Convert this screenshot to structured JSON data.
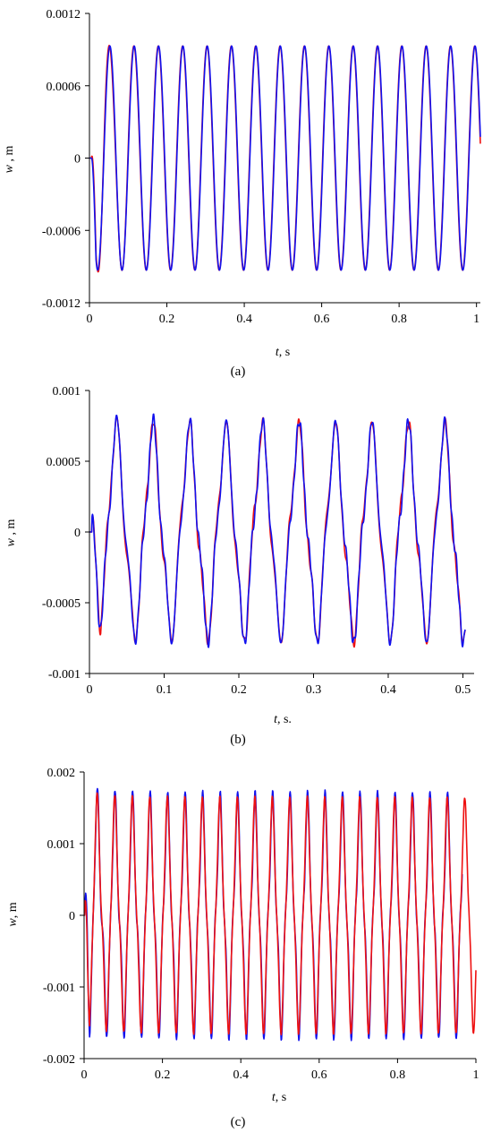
{
  "figure_captions": [
    "(a)",
    "(b)",
    "(c)"
  ],
  "colors": {
    "series_red": "#ee1111",
    "series_blue": "#1111ee",
    "axis": "#000000"
  },
  "chart_data": [
    {
      "type": "line",
      "title": "",
      "caption": "(a)",
      "xlabel_var": "t",
      "xlabel_unit": ", s",
      "ylabel_var": "w",
      "ylabel_unit": " , m",
      "xlim": [
        0,
        1.01
      ],
      "ylim": [
        -0.0012,
        0.0012
      ],
      "x_ticks": [
        0,
        0.2,
        0.4,
        0.6,
        0.8,
        1
      ],
      "x_tick_labels": [
        "0",
        "0.2",
        "0.4",
        "0.6",
        "0.8",
        "1"
      ],
      "y_ticks": [
        -0.0012,
        -0.0006,
        0,
        0.0006,
        0.0012
      ],
      "y_tick_labels": [
        "-0.0012",
        "-0.0006",
        "0",
        "0.0006",
        "0.0012"
      ],
      "grid": false,
      "series": [
        {
          "color": "#ee1111",
          "sampling": {
            "x_start": 0,
            "x_end": 1.01,
            "points": 1011
          },
          "model": {
            "kind": "sine",
            "start": 0.005,
            "amplitude": 0.00093,
            "frequency": 15.9,
            "phase": 3.14159,
            "transient_amplitude": 0.00012,
            "transient_decay": 0.05
          }
        },
        {
          "color": "#1111ee",
          "sampling": {
            "x_start": 0,
            "x_end": 1.01,
            "points": 1011
          },
          "model": {
            "kind": "sine",
            "start": 0.005,
            "amplitude": 0.00093,
            "frequency": 15.9,
            "phase": 3.08,
            "transient_amplitude": 0,
            "transient_decay": 0.05
          }
        }
      ]
    },
    {
      "type": "line",
      "title": "",
      "caption": "(b)",
      "xlabel_var": "t",
      "xlabel_unit": ", s.",
      "ylabel_var": "w",
      "ylabel_unit": " , m",
      "xlim": [
        0,
        0.515
      ],
      "ylim": [
        -0.001,
        0.001
      ],
      "x_ticks": [
        0,
        0.1,
        0.2,
        0.3,
        0.4,
        0.5
      ],
      "x_tick_labels": [
        "0",
        "0.1",
        "0.2",
        "0.3",
        "0.4",
        "0.5"
      ],
      "y_ticks": [
        -0.001,
        -0.0005,
        0,
        0.0005,
        0.001
      ],
      "y_tick_labels": [
        "-0.001",
        "-0.0005",
        "0",
        "0.0005",
        "0.001"
      ],
      "grid": false,
      "series": [
        {
          "color": "#ee1111",
          "sampling": {
            "x_start": 0,
            "x_end": 0.503,
            "points": 1007
          },
          "model": {
            "kind": "beating",
            "start": 0.003,
            "amplitude": 0.00068,
            "frequency": 20.5,
            "phase": 3.6,
            "harmonic_amplitude": 0.00011,
            "harmonic_ratio": 3,
            "harmonic_phase": 0.7,
            "noise_amplitude": 3.5e-05,
            "noise_frequency": 160,
            "transient_amplitude": 7e-05,
            "transient_decay": 0.06
          }
        },
        {
          "color": "#1111ee",
          "sampling": {
            "x_start": 0,
            "x_end": 0.503,
            "points": 1007
          },
          "model": {
            "kind": "beating",
            "start": 0.003,
            "amplitude": 0.00068,
            "frequency": 20.5,
            "phase": 3.56,
            "harmonic_amplitude": 0.00011,
            "harmonic_ratio": 3,
            "harmonic_phase": 0.9,
            "noise_amplitude": 4e-05,
            "noise_frequency": 190,
            "transient_amplitude": 6e-05,
            "transient_decay": 0.06
          }
        }
      ]
    },
    {
      "type": "line",
      "title": "",
      "caption": "(c)",
      "xlabel_var": "t",
      "xlabel_unit": ", s",
      "ylabel_var": "w",
      "ylabel_unit": ", m",
      "xlim": [
        0,
        1
      ],
      "ylim": [
        -0.002,
        0.002
      ],
      "x_ticks": [
        0,
        0.2,
        0.4,
        0.6,
        0.8,
        1
      ],
      "x_tick_labels": [
        "0",
        "0.2",
        "0.4",
        "0.6",
        "0.8",
        "1"
      ],
      "y_ticks": [
        -0.002,
        -0.001,
        0,
        0.001,
        0.002
      ],
      "y_tick_labels": [
        "-0.002",
        "-0.001",
        "0",
        "0.001",
        "0.002"
      ],
      "grid": false,
      "series": [
        {
          "color": "#1111ee",
          "sampling": {
            "x_start": 0,
            "x_end": 0.965,
            "points": 966
          },
          "model": {
            "kind": "beating",
            "start": 0.002,
            "amplitude": 0.00145,
            "frequency": 22.4,
            "phase": 3.3,
            "harmonic_amplitude": 0.00028,
            "harmonic_ratio": 3,
            "harmonic_phase": 0.2,
            "noise_amplitude": 3e-05,
            "noise_frequency": 210,
            "transient_amplitude": 0.0003,
            "transient_decay": 0.08
          }
        },
        {
          "color": "#ee1111",
          "sampling": {
            "x_start": 0,
            "x_end": 1,
            "points": 1001
          },
          "model": {
            "kind": "beating",
            "start": 0.002,
            "amplitude": 0.00145,
            "frequency": 22.4,
            "phase": 3.35,
            "harmonic_amplitude": 0.0002,
            "harmonic_ratio": 3,
            "harmonic_phase": 0.6,
            "noise_amplitude": 2e-05,
            "noise_frequency": 240,
            "transient_amplitude": 0.0002,
            "transient_decay": 0.08
          }
        }
      ]
    }
  ]
}
